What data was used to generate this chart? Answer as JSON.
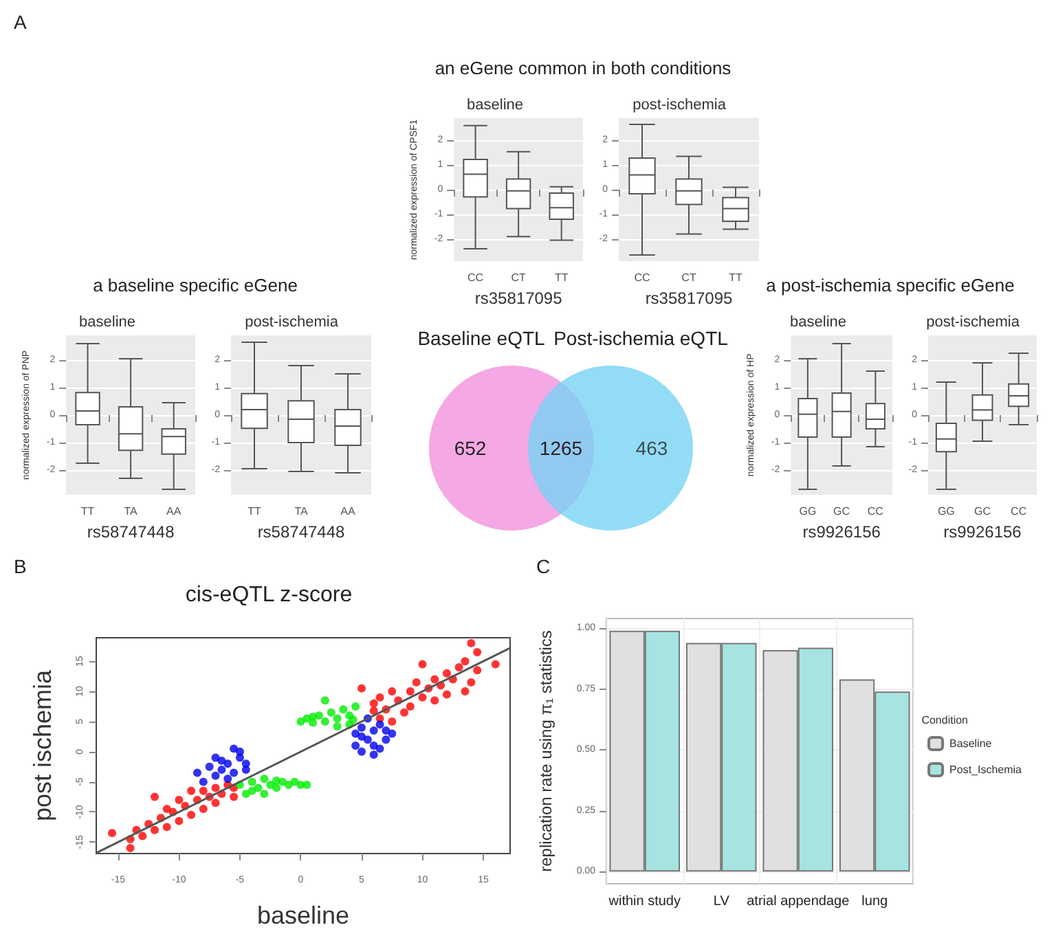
{
  "chart_data": [
    {
      "type": "box",
      "title": "an eGene common in both conditions",
      "subtitle": "baseline",
      "annotations": [
        "A"
      ],
      "categories": [
        "CC",
        "CT",
        "TT"
      ],
      "xlabel": "rs35817095",
      "ylabel": "normalized expression of CPSF1",
      "ylim": [
        -2.9,
        2.9
      ],
      "yticks": [
        -2,
        -1,
        0,
        1,
        2
      ],
      "grid": true,
      "boxes": [
        {
          "low": -2.4,
          "q1": -0.29,
          "median": 0.63,
          "q3": 1.23,
          "high": 2.6
        },
        {
          "low": -1.9,
          "q1": -0.77,
          "median": -0.05,
          "q3": 0.43,
          "high": 1.54
        },
        {
          "low": -2.05,
          "q1": -1.2,
          "median": -0.73,
          "q3": -0.14,
          "high": 0.12
        }
      ]
    },
    {
      "type": "box",
      "subtitle": "post-ischemia",
      "categories": [
        "CC",
        "CT",
        "TT"
      ],
      "xlabel": "rs35817095",
      "ylim": [
        -2.9,
        2.9
      ],
      "yticks": [
        -2,
        -1,
        0,
        1,
        2
      ],
      "grid": true,
      "boxes": [
        {
          "low": -2.65,
          "q1": -0.17,
          "median": 0.6,
          "q3": 1.28,
          "high": 2.65
        },
        {
          "low": -1.8,
          "q1": -0.6,
          "median": -0.05,
          "q3": 0.43,
          "high": 1.35
        },
        {
          "low": -1.6,
          "q1": -1.28,
          "median": -0.77,
          "q3": -0.32,
          "high": 0.1
        }
      ]
    },
    {
      "type": "box",
      "title": "a baseline specific eGene",
      "subtitle": "baseline",
      "categories": [
        "TT",
        "TA",
        "AA"
      ],
      "xlabel": "rs58747448",
      "ylabel": "normalized expression of PNP",
      "ylim": [
        -2.9,
        2.9
      ],
      "yticks": [
        -2,
        -1,
        0,
        1,
        2
      ],
      "grid": true,
      "boxes": [
        {
          "low": -1.75,
          "q1": -0.35,
          "median": 0.15,
          "q3": 0.82,
          "high": 2.6
        },
        {
          "low": -2.3,
          "q1": -1.28,
          "median": -0.68,
          "q3": 0.3,
          "high": 2.05
        },
        {
          "low": -2.7,
          "q1": -1.42,
          "median": -0.78,
          "q3": -0.5,
          "high": 0.45
        }
      ]
    },
    {
      "type": "box",
      "subtitle": "post-ischemia",
      "categories": [
        "TT",
        "TA",
        "AA"
      ],
      "xlabel": "rs58747448",
      "ylim": [
        -2.9,
        2.9
      ],
      "yticks": [
        -2,
        -1,
        0,
        1,
        2
      ],
      "grid": true,
      "boxes": [
        {
          "low": -1.95,
          "q1": -0.48,
          "median": 0.2,
          "q3": 0.78,
          "high": 2.65
        },
        {
          "low": -2.05,
          "q1": -1.0,
          "median": -0.15,
          "q3": 0.52,
          "high": 1.8
        },
        {
          "low": -2.1,
          "q1": -1.1,
          "median": -0.4,
          "q3": 0.2,
          "high": 1.5
        }
      ]
    },
    {
      "type": "other",
      "annotations": [
        "Baseline eQTL",
        "Post-ischemia eQTL"
      ],
      "categories": [
        null,
        null,
        null
      ],
      "colors": [
        "#f4a8e4",
        "#b3a6e6",
        "#74d2f4"
      ],
      "values": [
        652,
        1265,
        463
      ],
      "data_labels": true
    },
    {
      "type": "box",
      "title": "a post-ischemia specific eGene",
      "subtitle": "baseline",
      "categories": [
        "GG",
        "GC",
        "CC"
      ],
      "xlabel": "rs9926156",
      "ylabel": "normalized expression of HP",
      "ylim": [
        -2.9,
        2.9
      ],
      "yticks": [
        -2,
        -1,
        0,
        1,
        2
      ],
      "grid": true,
      "boxes": [
        {
          "low": -2.7,
          "q1": -0.8,
          "median": 0.03,
          "q3": 0.6,
          "high": 2.05
        },
        {
          "low": -1.85,
          "q1": -0.8,
          "median": 0.13,
          "q3": 0.8,
          "high": 2.6
        },
        {
          "low": -1.15,
          "q1": -0.5,
          "median": -0.15,
          "q3": 0.42,
          "high": 1.6
        }
      ]
    },
    {
      "type": "box",
      "subtitle": "post-ischemia",
      "categories": [
        "GG",
        "GC",
        "CC"
      ],
      "xlabel": "rs9926156",
      "ylim": [
        -2.9,
        2.9
      ],
      "yticks": [
        -2,
        -1,
        0,
        1,
        2
      ],
      "grid": true,
      "boxes": [
        {
          "low": -2.7,
          "q1": -1.33,
          "median": -0.87,
          "q3": -0.3,
          "high": 1.2
        },
        {
          "low": -0.95,
          "q1": -0.19,
          "median": 0.19,
          "q3": 0.73,
          "high": 1.9
        },
        {
          "low": -0.35,
          "q1": 0.32,
          "median": 0.7,
          "q3": 1.13,
          "high": 2.25
        }
      ]
    },
    {
      "type": "scatter",
      "title": "cis-eQTL z-score",
      "annotations": [
        "B"
      ],
      "xlabel": "baseline",
      "ylabel": "post ischemia",
      "xlim": [
        -16.8,
        17.2
      ],
      "ylim": [
        -16.9,
        18.9
      ],
      "xticks": [
        -15,
        -10,
        -5,
        0,
        5,
        10,
        15
      ],
      "yticks": [
        -15,
        -10,
        -5,
        0,
        5,
        10,
        15
      ],
      "marker": "circle",
      "series": [
        {
          "color": "#ff0000",
          "x": [
            -15.5,
            -14,
            -14,
            -13.5,
            -13,
            -12.5,
            -12,
            -12,
            -11.5,
            -11,
            -11,
            -10.5,
            -10,
            -10,
            -9.5,
            -9,
            -9,
            -8.5,
            -8,
            -8,
            -7.5,
            -7,
            -7,
            -6.5,
            -6,
            -5.5,
            -5.5,
            5,
            6,
            6,
            6.5,
            6.5,
            7,
            7.5,
            7.5,
            8,
            8.5,
            9,
            9,
            9.5,
            10,
            10,
            10.5,
            11,
            11,
            11.5,
            12,
            12,
            12.5,
            13,
            13.5,
            13.5,
            14,
            14.5,
            14.5,
            16,
            14
          ],
          "values": [
            -13.5,
            -16,
            -14.5,
            -13,
            -14,
            -12,
            -7.5,
            -13,
            -11,
            -12.5,
            -9.5,
            -10,
            -11.5,
            -8,
            -9,
            -10.5,
            -6.5,
            -8,
            -9.5,
            -6.5,
            -7.5,
            -8.5,
            -6,
            -7,
            -5.5,
            -7.5,
            -6,
            10.5,
            6.8,
            8,
            9,
            5.5,
            7,
            10,
            5,
            8.5,
            6.5,
            10,
            7.5,
            11.5,
            9,
            14.5,
            10.5,
            12,
            8.5,
            11,
            13,
            9.5,
            12,
            14,
            10,
            15,
            18,
            13.5,
            16.5,
            14.5,
            11.5
          ]
        },
        {
          "color": "#00ee00",
          "x": [
            -5,
            -4.5,
            -4,
            -3.5,
            -3,
            -3,
            -2.5,
            -2,
            -1.5,
            -1,
            -0.5,
            0,
            0.5,
            -4,
            -2,
            0,
            0.5,
            1,
            1.5,
            2,
            2,
            2.5,
            3,
            3.5,
            4,
            4,
            4.5,
            4.3,
            3,
            1
          ],
          "values": [
            -5.5,
            -7,
            -5,
            -6,
            -4.5,
            -7,
            -5.5,
            -6,
            -5,
            -5.5,
            -5,
            -5.5,
            -5.5,
            -6.5,
            -4.8,
            5,
            5.5,
            4.8,
            6,
            8.5,
            5,
            6.5,
            5.5,
            7,
            4.5,
            6,
            7.5,
            5.3,
            4.2,
            5.8
          ]
        },
        {
          "color": "#0000ee",
          "x": [
            -8.5,
            -8,
            -7.5,
            -7,
            -7,
            -6.5,
            -6,
            -6,
            -5.5,
            -5.5,
            -5,
            -5,
            -4.5,
            -4.5,
            -6.5,
            4.5,
            4.5,
            5,
            5,
            5.5,
            5.5,
            6,
            6,
            6.5,
            6.5,
            7,
            7,
            7.5,
            6,
            5
          ],
          "values": [
            -3.5,
            -5,
            -2.5,
            -4,
            -1,
            -3,
            -4.5,
            -2,
            0.5,
            -3.5,
            -1,
            0,
            -2,
            -3,
            -1.5,
            3,
            1,
            4,
            0,
            2,
            5.5,
            1,
            3.5,
            0.5,
            4.5,
            2,
            3.5,
            3,
            -0.5,
            2.5
          ]
        },
        {
          "type": "line",
          "marker": "none",
          "color": "#555555",
          "x": [
            -16.8,
            17.2
          ],
          "values": [
            -16.8,
            17.2
          ]
        }
      ]
    },
    {
      "type": "bar",
      "annotations": [
        "C"
      ],
      "categories": [
        "within study",
        "LV",
        "atrial appendage",
        "lung"
      ],
      "ylabel": "replication rate using π₁ statistics",
      "ylim": [
        -0.05,
        1.04
      ],
      "yticks": [
        {
          "value": 0,
          "label": "0.00"
        },
        {
          "value": 0.25,
          "label": "0.25"
        },
        {
          "value": 0.5,
          "label": "0.50"
        },
        {
          "value": 0.75,
          "label": "0.75"
        },
        {
          "value": 1,
          "label": "1.00"
        }
      ],
      "grid": true,
      "legend": "right",
      "legend_title": "Condition",
      "series": [
        {
          "name": "Baseline",
          "color": "#e0e0e0",
          "values": [
            0.99,
            0.94,
            0.91,
            0.79
          ]
        },
        {
          "name": "Post_Ischemia",
          "color": "#a6e3e1",
          "values": [
            0.99,
            0.94,
            0.92,
            0.74
          ]
        }
      ]
    }
  ]
}
